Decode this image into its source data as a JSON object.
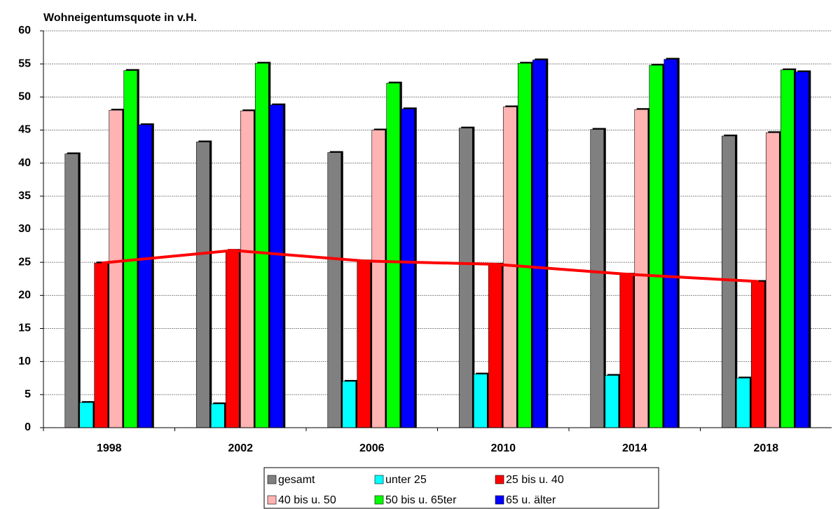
{
  "chart_data": {
    "type": "bar",
    "title": "Wohneigentumsquote in v.H.",
    "categories": [
      "1998",
      "2002",
      "2006",
      "2010",
      "2014",
      "2018"
    ],
    "series": [
      {
        "name": "gesamt",
        "color": "#808080",
        "values": [
          41.4,
          43.2,
          41.6,
          45.3,
          45.1,
          44.1
        ]
      },
      {
        "name": "unter 25",
        "color": "#00ffff",
        "values": [
          3.8,
          3.6,
          7.0,
          8.1,
          7.9,
          7.5
        ]
      },
      {
        "name": "25 bis u. 40",
        "color": "#ff0000",
        "values": [
          24.9,
          26.8,
          25.2,
          24.7,
          23.2,
          22.1
        ],
        "line": true
      },
      {
        "name": "40 bis u. 50",
        "color": "#ffb3b3",
        "values": [
          48.0,
          47.9,
          45.0,
          48.5,
          48.1,
          44.6
        ]
      },
      {
        "name": "50 bis u. 65ter",
        "color": "#00ff00",
        "values": [
          54.0,
          55.1,
          52.1,
          55.1,
          54.8,
          54.1
        ]
      },
      {
        "name": "65 u. älter",
        "color": "#0000ff",
        "values": [
          45.8,
          48.8,
          48.2,
          55.6,
          55.7,
          53.8
        ]
      }
    ],
    "ylim": [
      0,
      60
    ],
    "yticks": [
      0,
      5,
      10,
      15,
      20,
      25,
      30,
      35,
      40,
      45,
      50,
      55,
      60
    ],
    "grid": true
  }
}
